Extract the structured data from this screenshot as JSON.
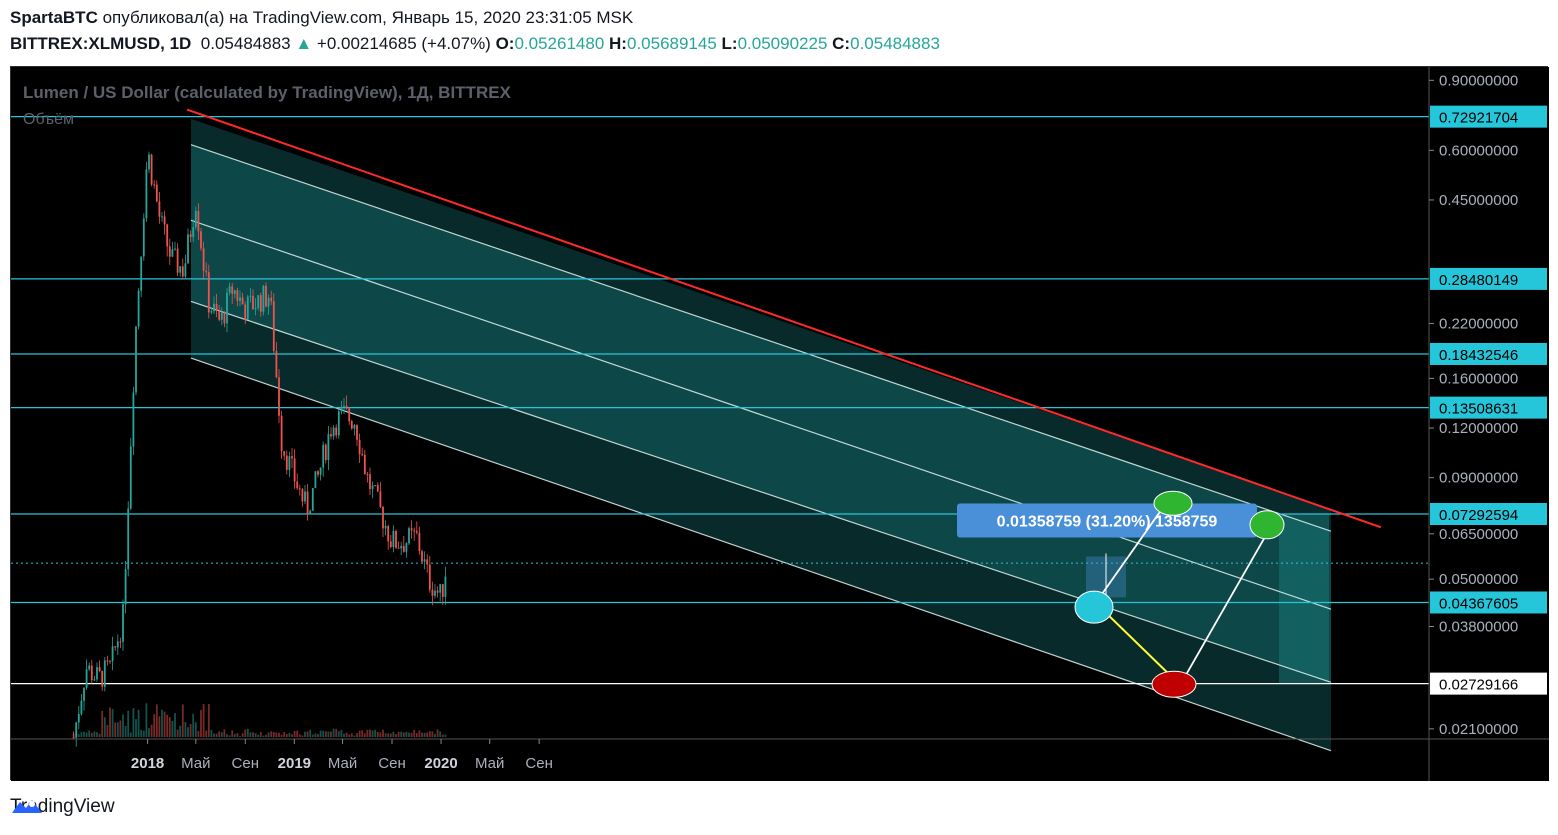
{
  "header": {
    "author": "SpartaBTC",
    "published_text": "опубликовал(а) на TradingView.com,",
    "datetime": "Январь 15, 2020 23:31:05 MSK",
    "symbol": "BITTREX:XLMUSD, 1D",
    "last": "0.05484883",
    "change": "+0.00214685 (+4.07%)",
    "o_label": "O:",
    "o_val": "0.05261480",
    "h_label": "H:",
    "h_val": "0.05689145",
    "l_label": "L:",
    "l_val": "0.05090225",
    "c_label": "C:",
    "c_val": "0.05484883"
  },
  "footer": {
    "brand": "TradingView"
  },
  "colors": {
    "background": "#000000",
    "up_candle": "#26a69a",
    "down_candle": "#ef5350",
    "channel_fill": "#1a7f7f",
    "resistance_line": "#ff2a2a",
    "level_line": "#26c6da",
    "support_line": "#ffffff",
    "label_bg": "#4a90d9"
  },
  "chart_data": {
    "type": "candlestick",
    "title": "Lumen / US Dollar (calculated by TradingView), 1Д, BITTREX",
    "volume_label": "Объём",
    "y_scale": "log",
    "ylim": [
      0.0205,
      0.95
    ],
    "x_tick_labels": [
      "2018",
      "Май",
      "Сен",
      "2019",
      "Май",
      "Сен",
      "2020",
      "Май",
      "Сен"
    ],
    "y_tick_labels": [
      "0.90000000",
      "0.60000000",
      "0.45000000",
      "0.22000000",
      "0.16000000",
      "0.12000000",
      "0.09000000",
      "0.06500000",
      "0.05000000",
      "0.03800000",
      "0.02100000"
    ],
    "y_ticks": [
      0.9,
      0.6,
      0.45,
      0.22,
      0.16,
      0.12,
      0.09,
      0.065,
      0.05,
      0.038,
      0.021
    ],
    "levels": [
      {
        "value": 0.72921704,
        "label": "0.72921704"
      },
      {
        "value": 0.28480149,
        "label": "0.28480149"
      },
      {
        "value": 0.18432546,
        "label": "0.18432546"
      },
      {
        "value": 0.13508631,
        "label": "0.13508631"
      },
      {
        "value": 0.07292594,
        "label": "0.07292594"
      },
      {
        "value": 0.04367605,
        "label": "0.04367605"
      },
      {
        "value": 0.02729166,
        "label": "0.02729166",
        "style": "white"
      }
    ],
    "last_price": 0.05484883,
    "measure_label": "0.01358759 (31.20%) 1358759",
    "path_points": [
      {
        "date": "2017-07",
        "price": 0.02
      },
      {
        "date": "2017-08",
        "price": 0.03
      },
      {
        "date": "2017-09",
        "price": 0.028
      },
      {
        "date": "2017-10",
        "price": 0.03
      },
      {
        "date": "2017-11",
        "price": 0.04
      },
      {
        "date": "2017-12",
        "price": 0.2
      },
      {
        "date": "2018-01",
        "price": 0.6
      },
      {
        "date": "2018-02",
        "price": 0.4
      },
      {
        "date": "2018-03",
        "price": 0.32
      },
      {
        "date": "2018-04",
        "price": 0.3
      },
      {
        "date": "2018-05",
        "price": 0.45
      },
      {
        "date": "2018-06",
        "price": 0.25
      },
      {
        "date": "2018-07",
        "price": 0.22
      },
      {
        "date": "2018-08",
        "price": 0.27
      },
      {
        "date": "2018-09",
        "price": 0.24
      },
      {
        "date": "2018-10",
        "price": 0.25
      },
      {
        "date": "2018-11",
        "price": 0.26
      },
      {
        "date": "2018-12",
        "price": 0.11
      },
      {
        "date": "2019-01",
        "price": 0.09
      },
      {
        "date": "2019-02",
        "price": 0.075
      },
      {
        "date": "2019-03",
        "price": 0.09
      },
      {
        "date": "2019-04",
        "price": 0.12
      },
      {
        "date": "2019-05",
        "price": 0.13
      },
      {
        "date": "2019-06",
        "price": 0.125
      },
      {
        "date": "2019-07",
        "price": 0.09
      },
      {
        "date": "2019-08",
        "price": 0.075
      },
      {
        "date": "2019-09",
        "price": 0.062
      },
      {
        "date": "2019-10",
        "price": 0.062
      },
      {
        "date": "2019-11",
        "price": 0.064
      },
      {
        "date": "2019-12",
        "price": 0.05
      },
      {
        "date": "2020-01",
        "price": 0.045
      },
      {
        "date": "2020-01-15",
        "price": 0.05484883
      }
    ]
  }
}
